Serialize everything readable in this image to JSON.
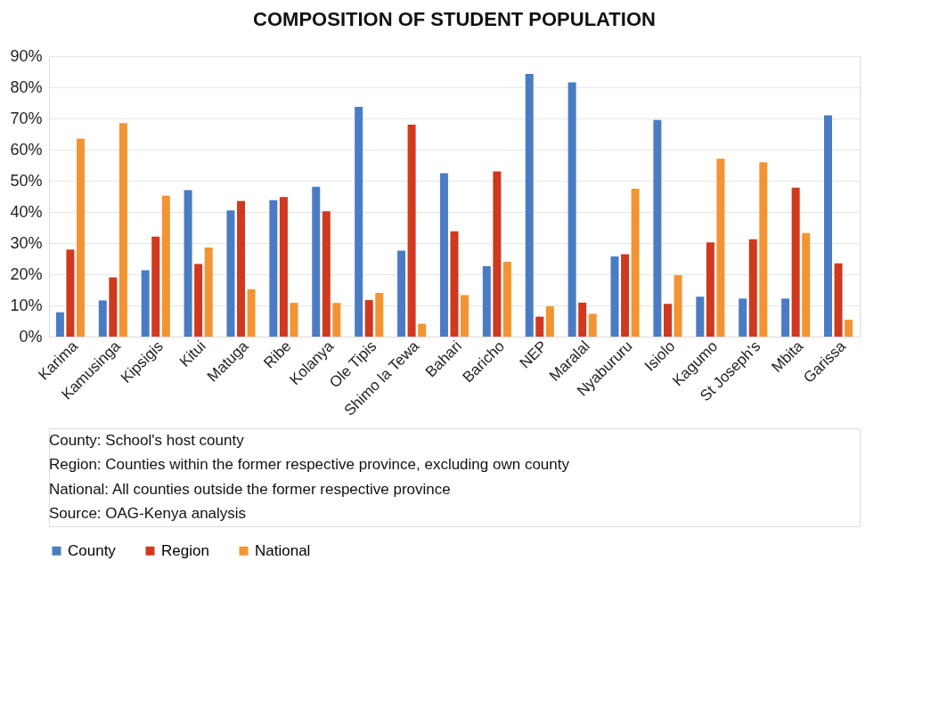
{
  "chart_data": {
    "type": "bar",
    "title": "COMPOSITION OF STUDENT POPULATION",
    "categories": [
      "Karima",
      "Kamusinga",
      "Kipsigis",
      "Kitui",
      "Matuga",
      "Ribe",
      "Kolanya",
      "Ole Tipis",
      "Shimo la Tewa",
      "Bahari",
      "Baricho",
      "NEP",
      "Maralal",
      "Nyabururu",
      "Isiolo",
      "Kagumo",
      "St Joseph's",
      "Mbita",
      "Garissa"
    ],
    "series": [
      {
        "name": "County",
        "color": "#4a7cc4",
        "values": [
          7.8,
          11.6,
          21.3,
          47,
          40.5,
          43.8,
          48.1,
          73.7,
          27.6,
          52.4,
          22.6,
          84.3,
          81.6,
          25.7,
          69.5,
          12.8,
          12.2,
          12.2,
          71
        ]
      },
      {
        "name": "Region",
        "color": "#d0391e",
        "values": [
          27.9,
          19,
          32.1,
          23.3,
          43.5,
          44.8,
          40.2,
          11.7,
          68,
          33.8,
          53,
          6.4,
          10.9,
          26.4,
          10.5,
          30.2,
          31.2,
          47.8,
          23.5
        ]
      },
      {
        "name": "National",
        "color": "#f39432",
        "values": [
          63.5,
          68.5,
          45.2,
          28.6,
          15.2,
          10.8,
          10.8,
          14,
          4.1,
          13.3,
          24,
          9.7,
          7.3,
          47.4,
          19.7,
          57.1,
          55.9,
          33.2,
          5.4
        ]
      }
    ],
    "ylim": [
      0,
      90
    ],
    "yticks": [
      {
        "value": 0,
        "label": "0%"
      },
      {
        "value": 10,
        "label": "10%"
      },
      {
        "value": 20,
        "label": "20%"
      },
      {
        "value": 30,
        "label": "30%"
      },
      {
        "value": 40,
        "label": "40%"
      },
      {
        "value": 50,
        "label": "50%"
      },
      {
        "value": 60,
        "label": "60%"
      },
      {
        "value": 70,
        "label": "70%"
      },
      {
        "value": 80,
        "label": "80%"
      },
      {
        "value": 90,
        "label": "90%"
      }
    ],
    "grid": "y",
    "legend": "bottom",
    "annotations": [
      "County: School's host county",
      "Region: Counties within the former respective province, excluding own county",
      "National: All counties outside the former respective province",
      "Source: OAG-Kenya analysis"
    ]
  }
}
